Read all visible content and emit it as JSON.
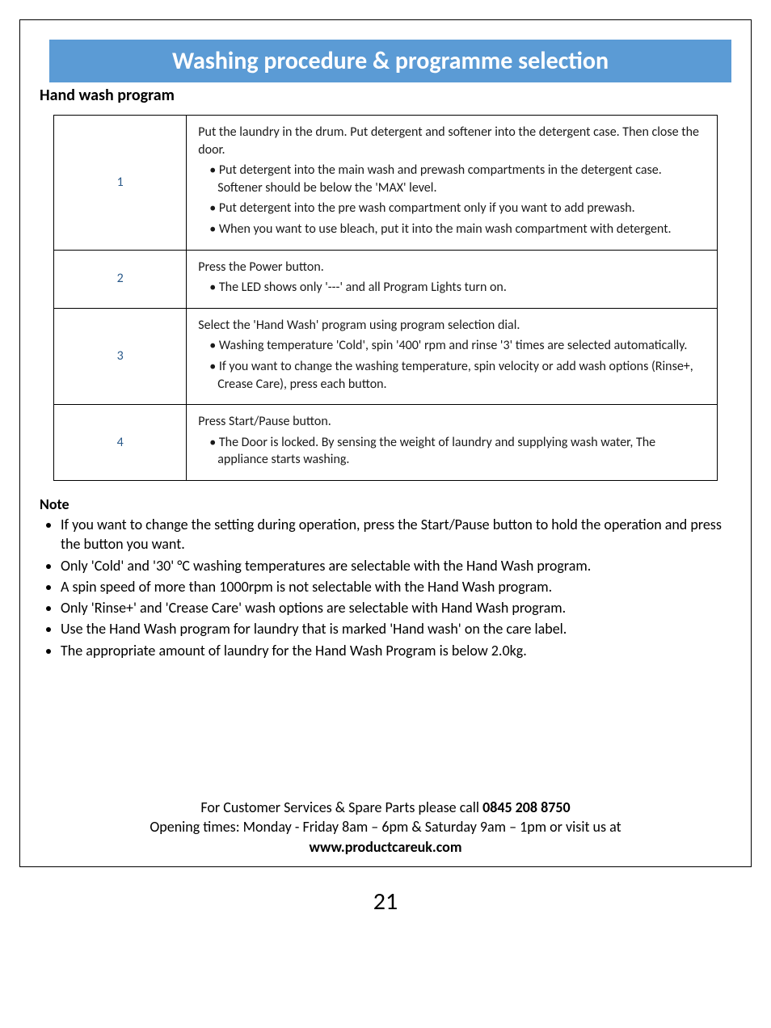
{
  "banner": {
    "title": "Washing procedure & programme selection",
    "bg_color": "#5b9bd5",
    "text_color": "#ffffff"
  },
  "subtitle": "Hand wash program",
  "steps": [
    {
      "num": "1",
      "lead": "Put the laundry in the drum. Put detergent and softener into the detergent case. Then close the door.",
      "bullets": [
        "Put detergent into the main wash and prewash compartments in the detergent case. Softener should be below the 'MAX' level.",
        "Put detergent into the pre wash compartment only if you want to add prewash.",
        "When you want to use bleach, put it into the main wash compartment with detergent."
      ]
    },
    {
      "num": "2",
      "lead": "Press the Power button.",
      "bullets": [
        "The LED shows only '---' and all Program Lights turn on."
      ]
    },
    {
      "num": "3",
      "lead": "Select the 'Hand Wash' program using program selection dial.",
      "bullets": [
        "Washing temperature 'Cold', spin '400' rpm and rinse '3' times are selected automatically.",
        "If you want to change the washing temperature, spin velocity or add wash options (Rinse+, Crease Care), press each button."
      ]
    },
    {
      "num": "4",
      "lead": "Press Start/Pause button.",
      "bullets": [
        "The Door is locked. By sensing the weight of laundry and supplying wash water, The appliance starts washing."
      ]
    }
  ],
  "note": {
    "heading": "Note",
    "items": [
      "If you want to change the setting during operation, press the Start/Pause button to hold the operation and press the button you want.",
      "Only 'Cold' and '30' °C washing temperatures are selectable with the Hand Wash program.",
      "A spin speed of more than 1000rpm is not selectable with the Hand Wash program.",
      "Only 'Rinse+' and 'Crease Care' wash options are selectable with Hand Wash program.",
      "Use the Hand Wash program for laundry that is marked 'Hand wash' on the care label.",
      "The appropriate amount of laundry for the Hand Wash Program is below 2.0kg."
    ]
  },
  "footer": {
    "line1_pre": "For Customer Services & Spare Parts please call ",
    "line1_bold": "0845 208 8750",
    "line2": "Opening times: Monday - Friday  8am – 6pm & Saturday 9am – 1pm or visit us at",
    "line3_bold": "www.productcareuk.com"
  },
  "page_number": "21"
}
